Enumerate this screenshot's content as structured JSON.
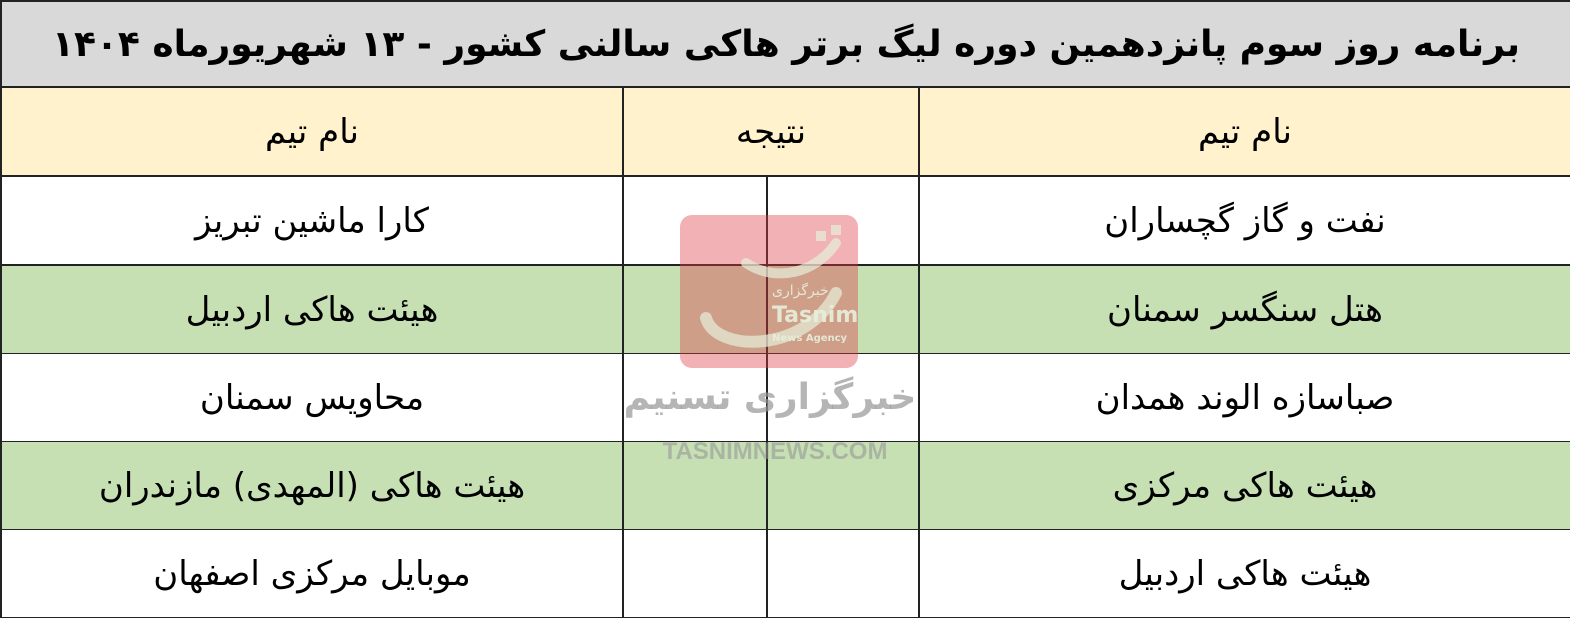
{
  "title": "برنامه روز سوم پانزدهمین دوره لیگ برتر هاکی سالنی کشور - ۱۳ شهریورماه ۱۴۰۴",
  "header": {
    "team_right": "نام تیم",
    "result": "نتیجه",
    "team_left": "نام تیم"
  },
  "colors": {
    "title_bg": "#d9d9d9",
    "header_bg": "#fff2cc",
    "alt_row_bg": "#c6e0b4"
  },
  "matches": [
    {
      "team_right": "نفت و گاز گچساران",
      "team_left": "کارا ماشین تبریز",
      "score_right": "",
      "score_left": ""
    },
    {
      "team_right": "هتل سنگسر سمنان",
      "team_left": "هیئت هاکی اردبیل",
      "score_right": "",
      "score_left": ""
    },
    {
      "team_right": "صباسازه الوند همدان",
      "team_left": "محاویس سمنان",
      "score_right": "",
      "score_left": ""
    },
    {
      "team_right": "هیئت هاکی مرکزی",
      "team_left": "هیئت هاکی (المهدی) مازندران",
      "score_right": "",
      "score_left": ""
    },
    {
      "team_right": "هیئت هاکی اردبیل",
      "team_left": "موبایل مرکزی اصفهان",
      "score_right": "",
      "score_left": ""
    }
  ],
  "watermark": {
    "logo_fa": "خبرگزاری",
    "logo_en": "Tasnim",
    "logo_sub": "News Agency",
    "text_fa": "خبرگزاری تسنیم",
    "text_en": "TASNIMNEWS.COM"
  }
}
